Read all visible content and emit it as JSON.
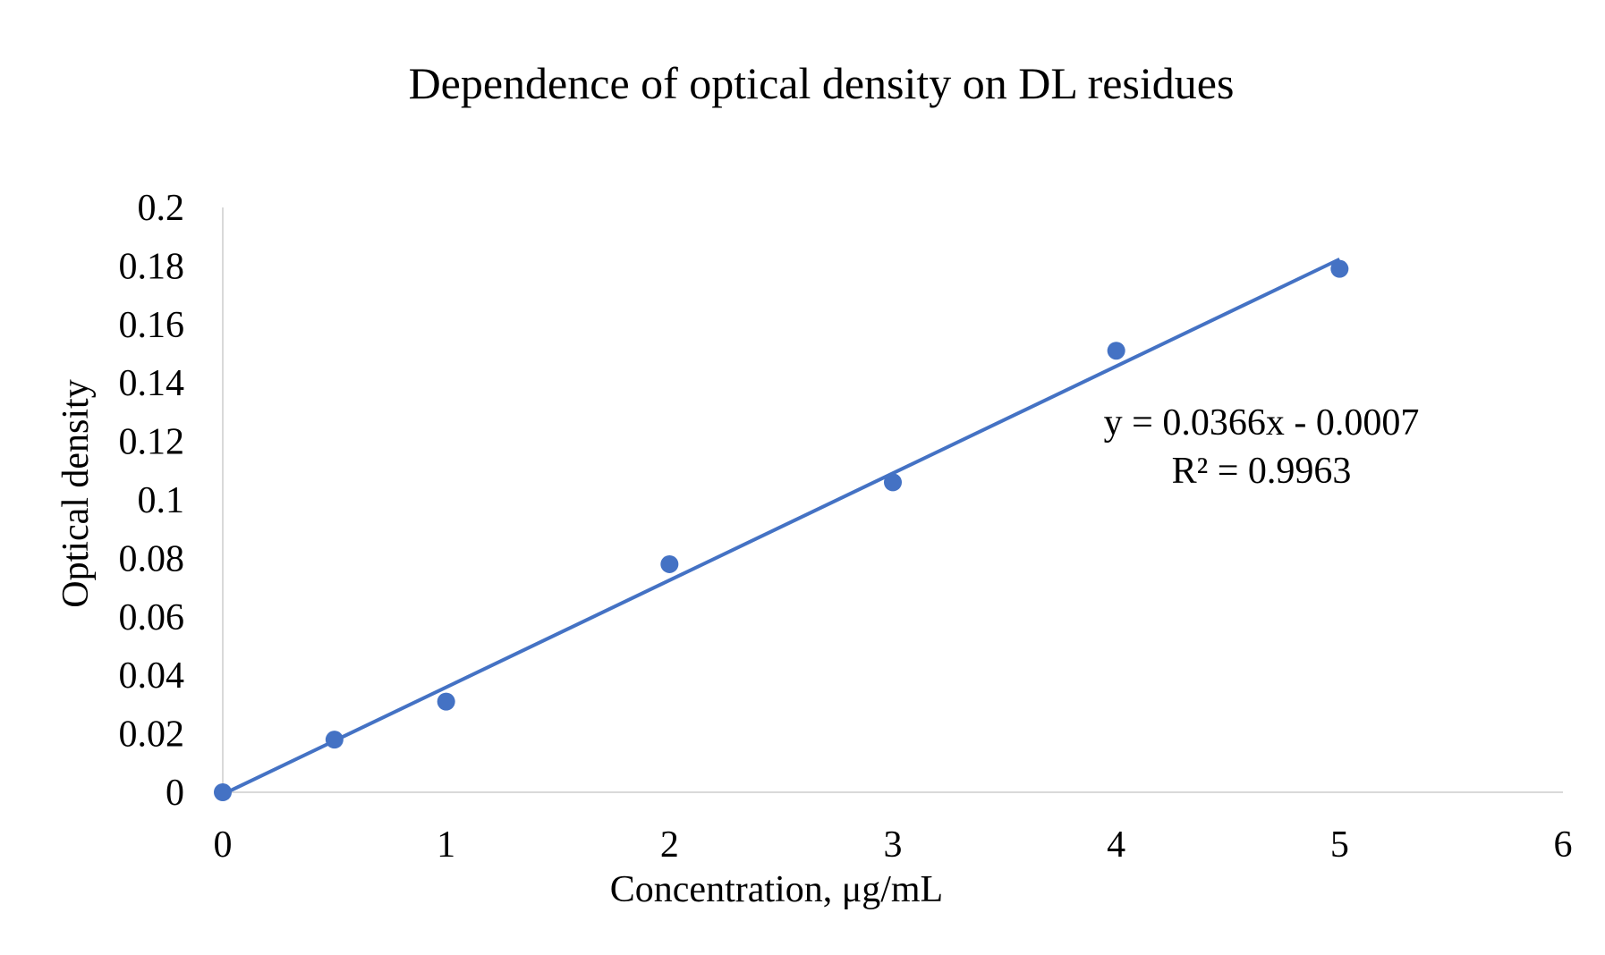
{
  "chart_data": {
    "type": "scatter",
    "title": "Dependence of optical density on DL residues",
    "xlabel": "Concentration, μg/mL",
    "ylabel": "Optical density",
    "xlim": [
      0,
      6
    ],
    "ylim": [
      0,
      0.2
    ],
    "x_ticks": [
      "0",
      "1",
      "2",
      "3",
      "4",
      "5",
      "6"
    ],
    "y_ticks": [
      "0",
      "0.02",
      "0.04",
      "0.06",
      "0.08",
      "0.1",
      "0.12",
      "0.14",
      "0.16",
      "0.18",
      "0.2"
    ],
    "grid": false,
    "legend": "none",
    "series": [
      {
        "x": [
          0,
          0.5,
          1,
          2,
          3,
          4,
          5
        ],
        "y": [
          0,
          0.018,
          0.031,
          0.078,
          0.106,
          0.151,
          0.179
        ],
        "color": "#4472C4"
      }
    ],
    "trendline": {
      "type": "linear",
      "slope": 0.0366,
      "intercept": -0.0007,
      "x_range": [
        0,
        5
      ],
      "color": "#4472C4",
      "equation": "y = 0.0366x - 0.0007",
      "r_squared": "R² = 0.9963"
    }
  }
}
